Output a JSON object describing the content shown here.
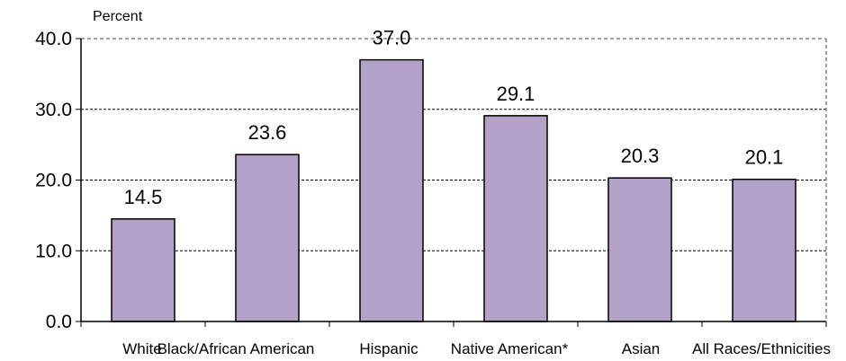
{
  "chart_data": {
    "type": "bar",
    "title": "",
    "xlabel": "",
    "ylabel": "Percent",
    "categories": [
      "White",
      "Black/African American",
      "Hispanic",
      "Native American*",
      "Asian",
      "All Races/Ethnicities"
    ],
    "values": [
      14.5,
      23.6,
      37.0,
      29.1,
      20.3,
      20.1
    ],
    "value_labels": [
      "14.5",
      "23.6",
      "37.0",
      "29.1",
      "20.3",
      "20.1"
    ],
    "ylim": [
      0,
      40
    ],
    "yticks": [
      0,
      10,
      20,
      30,
      40
    ],
    "ytick_labels": [
      "0.0",
      "10.0",
      "20.0",
      "30.0",
      "40.0"
    ],
    "grid": true,
    "legend": "none",
    "colors": {
      "bar_fill": "#b2a2c7",
      "bar_stroke": "#000000",
      "grid": "#000000",
      "frame": "#808080"
    }
  }
}
